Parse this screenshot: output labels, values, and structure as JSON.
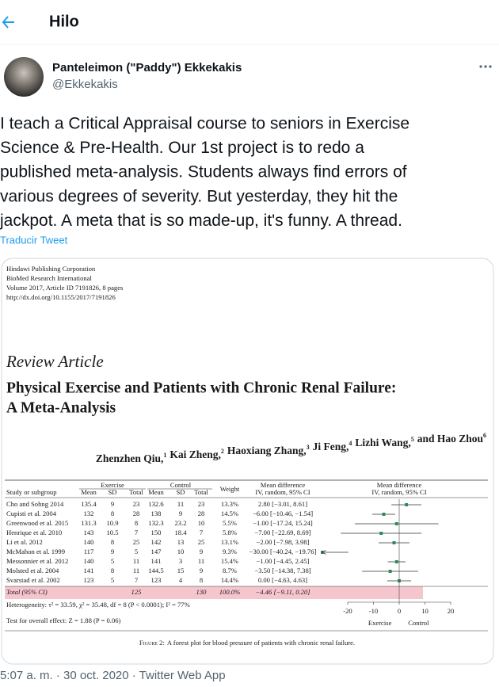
{
  "header": {
    "title": "Hilo"
  },
  "tweet": {
    "author_name": "Panteleimon (\"Paddy\") Ekkekakis",
    "handle": "@Ekkekakis",
    "text_lines": [
      "I teach a Critical Appraisal course to seniors in Exercise",
      "Science & Pre-Health. Our 1st project is to redo a",
      "published meta-analysis. Students always find errors of",
      "various degrees of severity. But yesterday, they hit the",
      "jackpot. A meta that is so made-up, it's funny. A thread."
    ],
    "translate": "Traducir Tweet",
    "timestamp": "5:07 a. m. · 30 oct. 2020 · Twitter Web App"
  },
  "figure": {
    "publisher_lines": [
      "Hindawi Publishing Corporation",
      "BioMed Research International",
      "Volume 2017, Article ID 7191826, 8 pages",
      "http://dx.doi.org/10.1155/2017/7191826"
    ],
    "article_type": "Review Article",
    "title_lines": [
      "Physical Exercise and Patients with Chronic Renal Failure:",
      "A Meta-Analysis"
    ],
    "authors": [
      {
        "name": "Zhenzhen Qiu,",
        "sup": "1"
      },
      {
        "name": "Kai Zheng,",
        "sup": "2"
      },
      {
        "name": "Haoxiang Zhang,",
        "sup": "3"
      },
      {
        "name": "Ji Feng,",
        "sup": "4"
      },
      {
        "name": "Lizhi Wang,",
        "sup": "5"
      },
      {
        "name": "and Hao Zhou",
        "sup": "6"
      }
    ],
    "table": {
      "group_headers": {
        "exercise": "Exercise",
        "control": "Control",
        "md": "Mean difference"
      },
      "columns": [
        "Study or subgroup",
        "Mean",
        "SD",
        "Total",
        "Mean",
        "SD",
        "Total",
        "Weight",
        "IV, random, 95% CI"
      ],
      "rows": [
        {
          "cells": [
            "Cho and Sohng 2014",
            "135.4",
            "9",
            "23",
            "132.6",
            "11",
            "23",
            "13.3%",
            "2.80 [−3.01, 8.61]"
          ],
          "md": 2.8,
          "ci": [
            -3.01,
            8.61
          ]
        },
        {
          "cells": [
            "Cupisti et al. 2004",
            "132",
            "8",
            "28",
            "138",
            "9",
            "28",
            "14.5%",
            "−6.00 [−10.46, −1.54]"
          ],
          "md": -6.0,
          "ci": [
            -10.46,
            -1.54
          ]
        },
        {
          "cells": [
            "Greenwood et al. 2015",
            "131.3",
            "10.9",
            "8",
            "132.3",
            "23.2",
            "10",
            "5.5%",
            "−1.00 [−17.24, 15.24]"
          ],
          "md": -1.0,
          "ci": [
            -17.24,
            15.24
          ]
        },
        {
          "cells": [
            "Henrique et al. 2010",
            "143",
            "10.5",
            "7",
            "150",
            "18.4",
            "7",
            "5.8%",
            "−7.00 [−22.69, 8.69]"
          ],
          "md": -7.0,
          "ci": [
            -22.69,
            8.69
          ]
        },
        {
          "cells": [
            "Li et al. 2012",
            "140",
            "8",
            "25",
            "142",
            "13",
            "25",
            "13.1%",
            "−2.00 [−7.98, 3.98]"
          ],
          "md": -2.0,
          "ci": [
            -7.98,
            3.98
          ]
        },
        {
          "cells": [
            "McMahon et al. 1999",
            "117",
            "9",
            "5",
            "147",
            "10",
            "9",
            "9.3%",
            "−30.00 [−40.24, −19.76]"
          ],
          "md": -30.0,
          "ci": [
            -40.24,
            -19.76
          ]
        },
        {
          "cells": [
            "Messonnier et al. 2012",
            "140",
            "5",
            "11",
            "141",
            "3",
            "11",
            "15.4%",
            "−1.00 [−4.45, 2.45]"
          ],
          "md": -1.0,
          "ci": [
            -4.45,
            2.45
          ]
        },
        {
          "cells": [
            "Molsted et al. 2004",
            "141",
            "8",
            "11",
            "144.5",
            "15",
            "9",
            "8.7%",
            "−3.50 [−14.38, 7.38]"
          ],
          "md": -3.5,
          "ci": [
            -14.38,
            7.38
          ]
        },
        {
          "cells": [
            "Svarstad et al. 2002",
            "123",
            "5",
            "7",
            "123",
            "4",
            "8",
            "14.4%",
            "0.00 [−4.63, 4.63]"
          ],
          "md": 0.0,
          "ci": [
            -4.63,
            4.63
          ]
        }
      ],
      "total": {
        "label": "Total (95% CI)",
        "exercise_total": "125",
        "control_total": "130",
        "weight": "100.0%",
        "md_text": "−4.46 [−9.11, 0.20]",
        "md": -4.46,
        "ci": [
          -9.11,
          0.2
        ]
      },
      "heterogeneity": "Heterogeneity: τ² = 33.59, χ² = 35.48, df = 8 (P < 0.0001); I² = 77%",
      "overall_effect": "Test for overall effect: Z = 1.88 (P = 0.06)"
    },
    "forest": {
      "header_lines": [
        "Mean difference",
        "IV, random, 95% CI"
      ],
      "xlim": [
        -30,
        30
      ],
      "xticks": [
        -20,
        -10,
        0,
        10,
        20
      ],
      "left_label": "Exercise",
      "right_label": "Control",
      "color": "#2e8b57"
    },
    "caption": {
      "label": "Figure 2:",
      "text": "A forest plot for blood pressure of patients with chronic renal failure."
    }
  }
}
